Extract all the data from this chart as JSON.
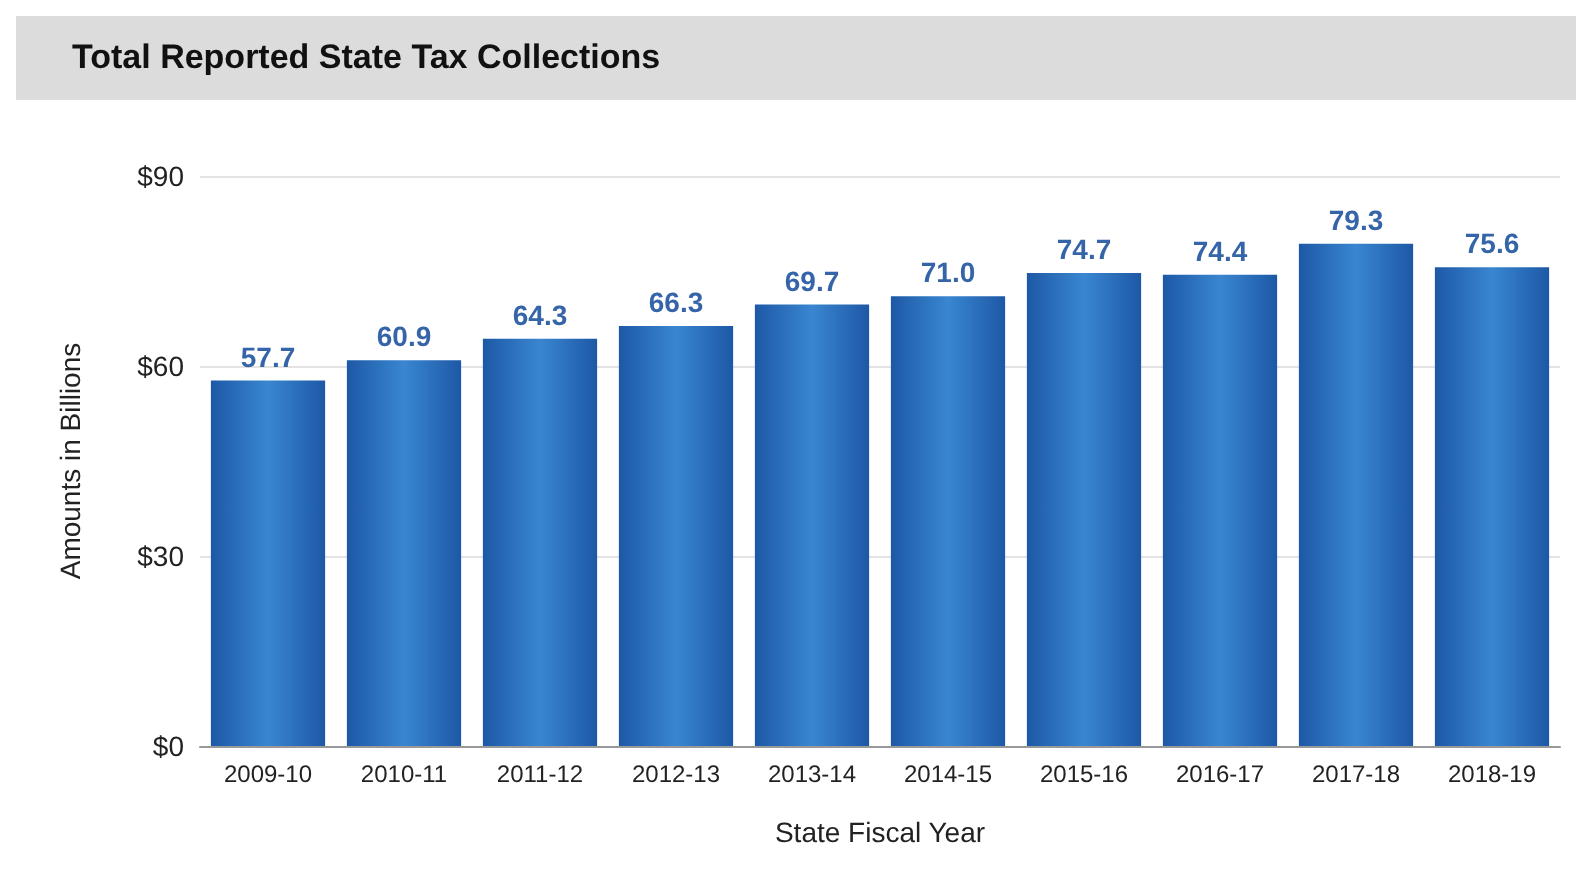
{
  "chart_data": {
    "type": "bar",
    "title": "Total Reported State Tax Collections",
    "xlabel": "State Fiscal Year",
    "ylabel": "Amounts in Billions",
    "categories": [
      "2009-10",
      "2010-11",
      "2011-12",
      "2012-13",
      "2013-14",
      "2014-15",
      "2015-16",
      "2016-17",
      "2017-18",
      "2018-19"
    ],
    "values": [
      57.7,
      60.9,
      64.3,
      66.3,
      69.7,
      71.0,
      74.7,
      74.4,
      79.3,
      75.6
    ],
    "value_labels": [
      "57.7",
      "60.9",
      "64.3",
      "66.3",
      "69.7",
      "71.0",
      "74.7",
      "74.4",
      "79.3",
      "75.6"
    ],
    "color": "#1d58a6",
    "ylim": [
      0,
      90
    ],
    "yticks": [
      {
        "value": 0,
        "label": "$0"
      },
      {
        "value": 30,
        "label": "$30"
      },
      {
        "value": 60,
        "label": "$60"
      },
      {
        "value": 90,
        "label": "$90"
      }
    ],
    "grid": "y"
  }
}
